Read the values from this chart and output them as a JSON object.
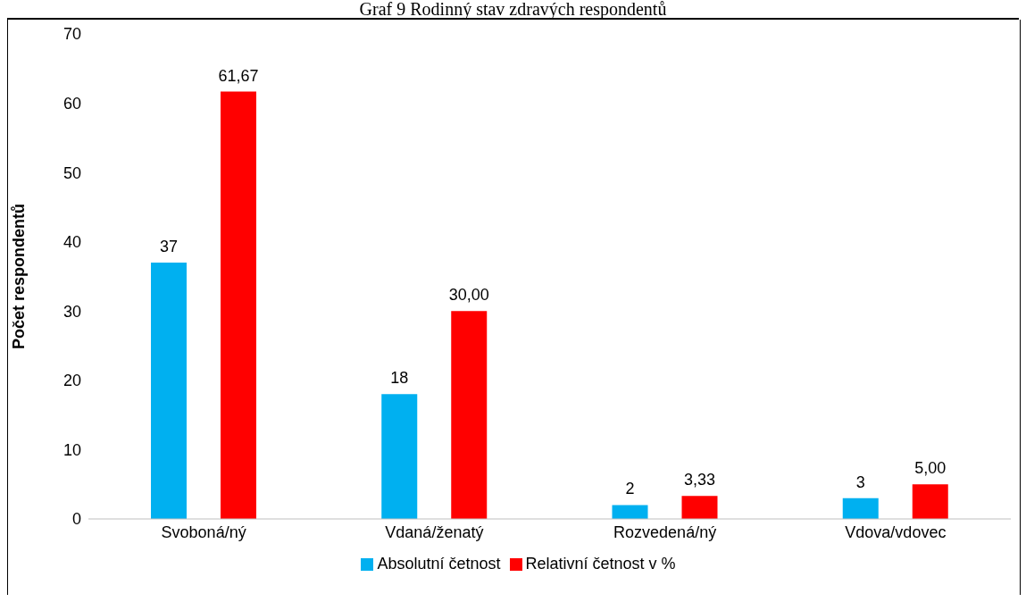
{
  "chart_data": {
    "type": "bar",
    "title": "Graf 9 Rodinný stav zdravých respondentů",
    "ylabel": "Počet respondentů",
    "categories": [
      "Svoboná/ný",
      "Vdaná/ženatý",
      "Rozvedená/ný",
      "Vdova/vdovec"
    ],
    "series": [
      {
        "name": "Absolutní četnost",
        "color": "#00b0f0",
        "values": [
          37,
          18,
          2,
          3
        ],
        "value_labels": [
          "37",
          "18",
          "2",
          "3"
        ]
      },
      {
        "name": "Relativní četnost v %",
        "color": "#ff0000",
        "values": [
          61.67,
          30,
          3.33,
          5
        ],
        "value_labels": [
          "61,67",
          "30,00",
          "3,33",
          "5,00"
        ]
      }
    ],
    "ylim": [
      0,
      70
    ],
    "yticks": [
      0,
      10,
      20,
      30,
      40,
      50,
      60,
      70
    ],
    "grid": false,
    "legend": "bottom"
  }
}
